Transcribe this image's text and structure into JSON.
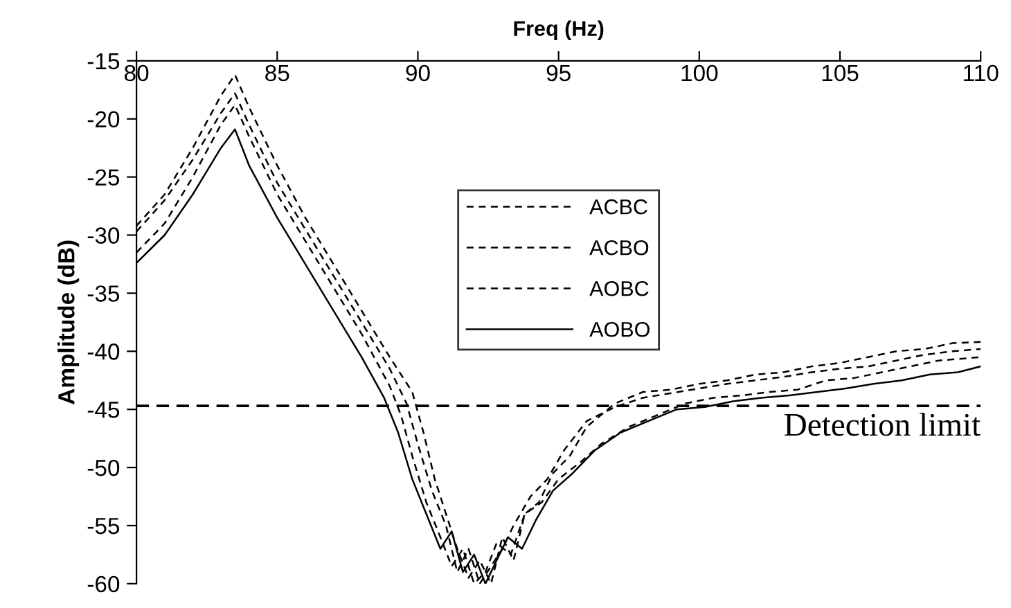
{
  "chart_data": {
    "type": "line",
    "xlabel": "Freq (Hz)",
    "ylabel": "Amplitude (dB)",
    "xlim": [
      80,
      110
    ],
    "xticks": [
      80,
      85,
      90,
      95,
      100,
      105,
      110
    ],
    "ylim": [
      -60,
      -15
    ],
    "yticks": [
      -60,
      -55,
      -50,
      -45,
      -40,
      -35,
      -30,
      -25,
      -20,
      -15
    ],
    "grid": false,
    "legend": "top",
    "marker": "none",
    "ref_lines": [
      {
        "axis": "y",
        "value": -44.7,
        "label": "Detection limit",
        "color": "#000000",
        "line_style": "dashed"
      }
    ],
    "series": [
      {
        "name": "ACBC",
        "color": "#000000",
        "line_style": "dashed",
        "x": [
          80,
          81,
          82,
          83,
          83.5,
          84,
          85,
          86,
          87,
          88,
          89,
          89.8,
          90.2,
          90.6,
          91,
          91.4,
          91.8,
          92.2,
          92.6,
          93,
          93.4,
          93.8,
          94.3,
          94.8,
          95.4,
          96,
          97,
          98,
          99,
          100,
          101,
          102,
          103,
          104,
          105,
          106,
          107,
          108,
          109,
          110
        ],
        "values": [
          -29.2,
          -26.5,
          -22.5,
          -18,
          -16.2,
          -19,
          -24,
          -28.5,
          -32.5,
          -36.5,
          -40.5,
          -43.5,
          -47,
          -51,
          -54,
          -57,
          -59.5,
          -58,
          -60,
          -56,
          -58,
          -54,
          -53,
          -50.5,
          -49,
          -46.5,
          -44.5,
          -43.5,
          -43.3,
          -42.8,
          -42.5,
          -42,
          -41.8,
          -41.3,
          -41,
          -40.5,
          -40,
          -39.8,
          -39.3,
          -39.2
        ]
      },
      {
        "name": "ACBO",
        "color": "#000000",
        "line_style": "dashed",
        "x": [
          80,
          81,
          82,
          83,
          83.5,
          84,
          85,
          86,
          87,
          88,
          89,
          89.6,
          90,
          90.5,
          91,
          91.4,
          91.8,
          92.2,
          92.6,
          93,
          93.4,
          94,
          94.6,
          95.2,
          96,
          97,
          98,
          99,
          100,
          101,
          102,
          103,
          104,
          105,
          106,
          107,
          108,
          109,
          110
        ],
        "values": [
          -29.7,
          -27,
          -23.5,
          -19.5,
          -17.8,
          -20.5,
          -25.5,
          -29.5,
          -33.5,
          -37.5,
          -41.5,
          -44.5,
          -48,
          -52,
          -55,
          -59,
          -57,
          -60,
          -58.5,
          -57,
          -55,
          -52.5,
          -51,
          -48.5,
          -46,
          -44.8,
          -44,
          -43.6,
          -43.2,
          -42.8,
          -42.5,
          -42.2,
          -41.8,
          -41.5,
          -41.3,
          -40.8,
          -40.3,
          -40,
          -39.8
        ]
      },
      {
        "name": "AOBC",
        "color": "#000000",
        "line_style": "dashed",
        "x": [
          80,
          81,
          82,
          83,
          83.5,
          84,
          85,
          86,
          87,
          88,
          89,
          89.4,
          89.8,
          90.3,
          90.8,
          91.2,
          91.6,
          92,
          92.4,
          92.8,
          93.3,
          93.8,
          94.4,
          95,
          95.8,
          96.5,
          97.5,
          98.5,
          99.5,
          100.5,
          101.5,
          102.5,
          103.5,
          104.5,
          105.5,
          106.5,
          107.5,
          108.5,
          110
        ],
        "values": [
          -31.5,
          -29,
          -25,
          -20.5,
          -18.8,
          -21.5,
          -26.5,
          -30.5,
          -34.5,
          -38.5,
          -43,
          -45.5,
          -49,
          -53,
          -56,
          -58.5,
          -57,
          -60,
          -59,
          -56.5,
          -57.5,
          -54,
          -53,
          -51,
          -49.5,
          -48,
          -46.5,
          -45.5,
          -44.5,
          -44,
          -43.8,
          -43.5,
          -43.3,
          -42.5,
          -42.3,
          -41.8,
          -41.3,
          -40.8,
          -40.5
        ]
      },
      {
        "name": "AOBO",
        "color": "#000000",
        "line_style": "solid",
        "x": [
          80,
          81,
          82,
          83,
          83.5,
          84,
          85,
          86,
          87,
          88,
          88.8,
          89.3,
          89.8,
          90.3,
          90.8,
          91.2,
          91.6,
          92,
          92.4,
          92.8,
          93.2,
          93.7,
          94.2,
          94.8,
          95.5,
          96.3,
          97.2,
          98.2,
          99.2,
          100.2,
          101.2,
          102.2,
          103.2,
          104.2,
          105.2,
          106.2,
          107.2,
          108.2,
          109.2,
          110
        ],
        "values": [
          -32.4,
          -30,
          -26.5,
          -22.5,
          -20.9,
          -24,
          -28.5,
          -32.5,
          -36.5,
          -40.5,
          -44,
          -47,
          -51,
          -54,
          -57,
          -55.5,
          -59,
          -57.5,
          -60,
          -58,
          -56,
          -57,
          -54.5,
          -52,
          -50.5,
          -48.5,
          -47,
          -46,
          -45,
          -44.8,
          -44.3,
          -44,
          -43.8,
          -43.5,
          -43.2,
          -42.8,
          -42.5,
          -42,
          -41.8,
          -41.3
        ]
      }
    ]
  }
}
